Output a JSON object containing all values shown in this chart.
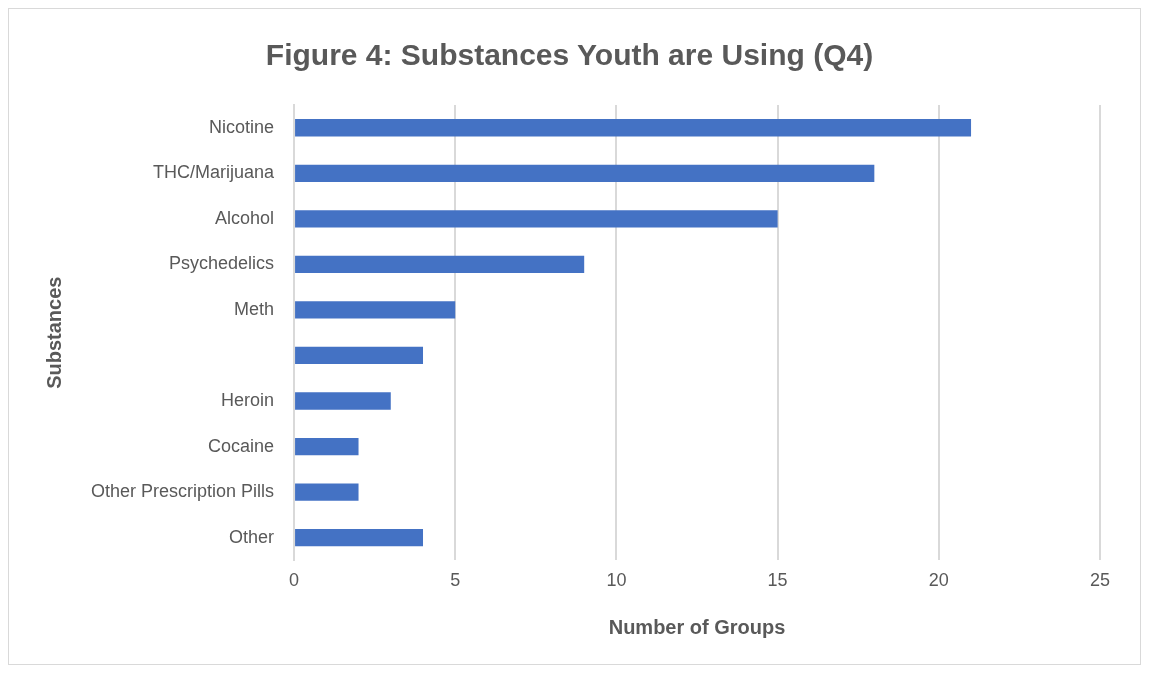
{
  "chart_data": {
    "type": "bar",
    "orientation": "horizontal",
    "title": "Figure 4: Substances Youth are Using (Q4)",
    "xlabel": "Number of Groups",
    "ylabel": "Substances",
    "categories": [
      "Nicotine",
      "THC/Marijuana",
      "Alcohol",
      "Psychedelics",
      "Meth",
      null,
      "Heroin",
      "Cocaine",
      "Other Prescription Pills",
      "Other"
    ],
    "values": [
      21,
      18,
      15,
      9,
      5,
      4,
      3,
      2,
      2,
      4
    ],
    "color": "#4472c4",
    "xlim": [
      0,
      25
    ],
    "xticks": [
      0,
      5,
      10,
      15,
      20,
      25
    ],
    "grid": "x",
    "legend": false
  }
}
